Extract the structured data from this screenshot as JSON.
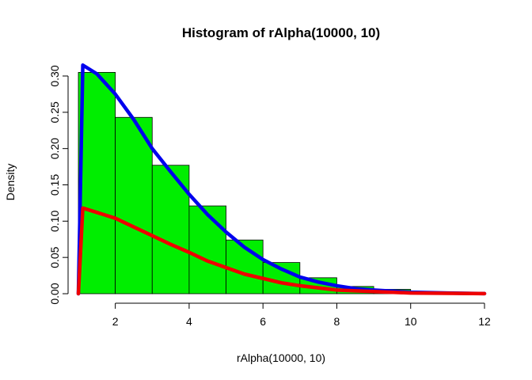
{
  "chart_data": {
    "type": "histogram",
    "title": "Histogram of rAlpha(10000, 10)",
    "xlabel": "rAlpha(10000, 10)",
    "ylabel": "Density",
    "xlim": [
      1,
      12
    ],
    "ylim": [
      0,
      0.3
    ],
    "xticks": [
      2,
      4,
      6,
      8,
      10,
      12
    ],
    "yticks": [
      0.0,
      0.05,
      0.1,
      0.15,
      0.2,
      0.25,
      0.3
    ],
    "ytick_labels": [
      "0.00",
      "0.05",
      "0.10",
      "0.15",
      "0.20",
      "0.25",
      "0.30"
    ],
    "bars": {
      "color": "#00ee00",
      "bins": [
        {
          "x0": 1,
          "x1": 2,
          "density": 0.305
        },
        {
          "x0": 2,
          "x1": 3,
          "density": 0.243
        },
        {
          "x0": 3,
          "x1": 4,
          "density": 0.177
        },
        {
          "x0": 4,
          "x1": 5,
          "density": 0.121
        },
        {
          "x0": 5,
          "x1": 6,
          "density": 0.074
        },
        {
          "x0": 6,
          "x1": 7,
          "density": 0.043
        },
        {
          "x0": 7,
          "x1": 8,
          "density": 0.022
        },
        {
          "x0": 8,
          "x1": 9,
          "density": 0.01
        },
        {
          "x0": 9,
          "x1": 10,
          "density": 0.006
        },
        {
          "x0": 10,
          "x1": 11,
          "density": 0.001
        }
      ]
    },
    "series": [
      {
        "color": "#0000ee",
        "x": [
          1.0,
          1.12,
          1.5,
          2,
          2.5,
          3,
          3.5,
          4,
          4.5,
          5,
          5.5,
          6,
          6.5,
          7,
          7.5,
          8,
          8.5,
          9,
          10,
          11,
          12
        ],
        "y": [
          0.0,
          0.315,
          0.303,
          0.275,
          0.24,
          0.2,
          0.168,
          0.137,
          0.109,
          0.085,
          0.064,
          0.047,
          0.034,
          0.023,
          0.016,
          0.011,
          0.007,
          0.005,
          0.002,
          0.001,
          0.0002
        ]
      },
      {
        "color": "#ee0000",
        "x": [
          1.0,
          1.12,
          1.5,
          2,
          2.5,
          3,
          3.5,
          4,
          4.5,
          5,
          5.5,
          6,
          6.5,
          7,
          7.5,
          8,
          8.5,
          9,
          10,
          11,
          12
        ],
        "y": [
          0.0,
          0.118,
          0.112,
          0.104,
          0.092,
          0.08,
          0.068,
          0.057,
          0.045,
          0.036,
          0.027,
          0.021,
          0.015,
          0.011,
          0.008,
          0.005,
          0.004,
          0.003,
          0.001,
          0.0005,
          0.0001
        ]
      }
    ]
  }
}
